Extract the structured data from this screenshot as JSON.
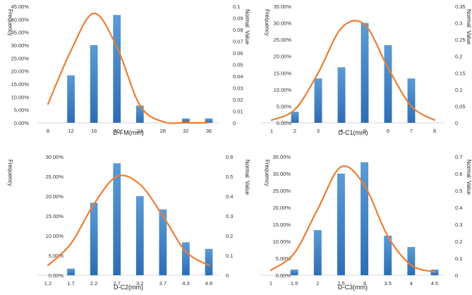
{
  "chart_data": [
    {
      "type": "bar",
      "overlay": "line",
      "categories": [
        "8",
        "12",
        "16",
        "20",
        "24",
        "28",
        "32",
        "36"
      ],
      "frequency_pct": [
        0,
        18.33,
        30.0,
        41.67,
        6.67,
        0,
        1.67,
        1.67
      ],
      "normal_values": [
        0.016,
        0.062,
        0.094,
        0.065,
        0.015,
        0.001,
        0.0,
        0.0
      ],
      "xlabel": "D-FM(mm)",
      "ylabel_left": "Frequency",
      "ylabel_right": "Normal  Value",
      "ylim_left": [
        0,
        45
      ],
      "ylim_right": [
        0,
        0.1
      ],
      "left_ticks": [
        "0.00%",
        "5.00%",
        "10.00%",
        "15.00%",
        "20.00%",
        "25.00%",
        "30.00%",
        "35.00%",
        "40.00%",
        "45.00%"
      ],
      "right_ticks": [
        "0",
        "0.01",
        "0.02",
        "0.03",
        "0.04",
        "0.05",
        "0.06",
        "0.07",
        "0.08",
        "0.09",
        "0.1"
      ],
      "bar_color": "#3a7fc8",
      "line_color": "#ed7d31"
    },
    {
      "type": "bar",
      "overlay": "line",
      "categories": [
        "1",
        "2",
        "3",
        "4",
        "5",
        "6",
        "7",
        "8"
      ],
      "frequency_pct": [
        0,
        3.33,
        13.33,
        16.67,
        30.0,
        23.33,
        13.33,
        0
      ],
      "normal_values": [
        0.008,
        0.04,
        0.15,
        0.285,
        0.295,
        0.165,
        0.05,
        0.008
      ],
      "xlabel": "D-C1(mm)",
      "ylabel_left": "Frequency",
      "ylabel_right": "Normal  Value",
      "ylim_left": [
        0,
        35
      ],
      "ylim_right": [
        0,
        0.35
      ],
      "left_ticks": [
        "0.00%",
        "5.00%",
        "10.00%",
        "15.00%",
        "20.00%",
        "25.00%",
        "30.00%",
        "35.00%"
      ],
      "right_ticks": [
        "0",
        "0.05",
        "0.1",
        "0.15",
        "0.2",
        "0.25",
        "0.3",
        "0.35"
      ],
      "bar_color": "#3a7fc8",
      "line_color": "#ed7d31"
    },
    {
      "type": "bar",
      "overlay": "line",
      "categories": [
        "1.2",
        "1.7",
        "2.2",
        "2.7",
        "3.2",
        "3.7",
        "4.3",
        "4.8"
      ],
      "frequency_pct": [
        0,
        1.67,
        18.33,
        28.33,
        20.0,
        16.67,
        8.33,
        6.67
      ],
      "normal_values": [
        0.05,
        0.16,
        0.36,
        0.5,
        0.46,
        0.3,
        0.12,
        0.05
      ],
      "xlabel": "D-C2(mm)",
      "ylabel_left": "Frequency",
      "ylabel_right": "Normal  Value",
      "ylim_left": [
        0,
        30
      ],
      "ylim_right": [
        0,
        0.6
      ],
      "left_ticks": [
        "0.00%",
        "5.00%",
        "10.00%",
        "15.00%",
        "20.00%",
        "25.00%",
        "30.00%"
      ],
      "right_ticks": [
        "0",
        "0.1",
        "0.2",
        "0.3",
        "0.4",
        "0.5",
        "0.6"
      ],
      "bar_color": "#3a7fc8",
      "line_color": "#ed7d31"
    },
    {
      "type": "bar",
      "overlay": "line",
      "categories": [
        "1",
        "1.5",
        "2",
        "2.5",
        "3",
        "3.5",
        "4",
        "4.5"
      ],
      "frequency_pct": [
        0,
        1.67,
        13.33,
        30.0,
        33.33,
        11.67,
        8.33,
        1.67
      ],
      "normal_values": [
        0.03,
        0.13,
        0.39,
        0.64,
        0.53,
        0.23,
        0.06,
        0.02
      ],
      "xlabel": "D-C3(mm)",
      "ylabel_left": "Frequency",
      "ylabel_right": "Normal  Value",
      "ylim_left": [
        0,
        35
      ],
      "ylim_right": [
        0,
        0.7
      ],
      "left_ticks": [
        "0.00%",
        "5.00%",
        "10.00%",
        "15.00%",
        "20.00%",
        "25.00%",
        "30.00%",
        "35.00%"
      ],
      "right_ticks": [
        "0",
        "0.1",
        "0.2",
        "0.3",
        "0.4",
        "0.5",
        "0.6",
        "0.7"
      ],
      "bar_color": "#3a7fc8",
      "line_color": "#ed7d31"
    }
  ]
}
